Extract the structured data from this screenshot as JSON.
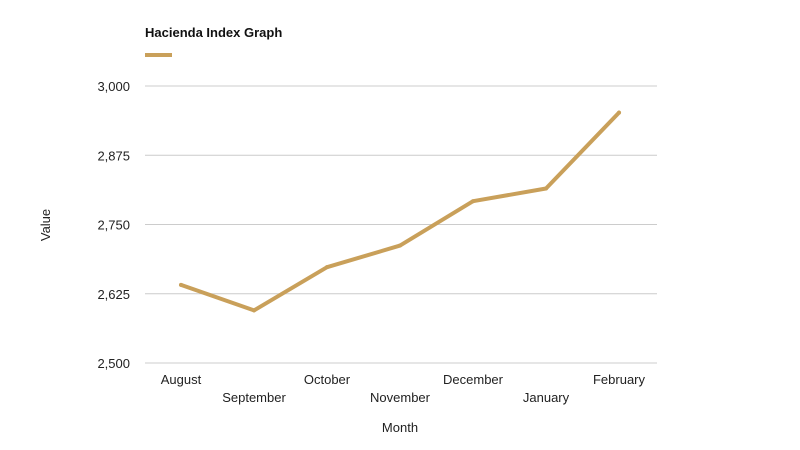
{
  "chart_data": {
    "type": "line",
    "title": "",
    "xlabel": "Month",
    "ylabel": "Value",
    "categories": [
      "August",
      "September",
      "October",
      "November",
      "December",
      "January",
      "February"
    ],
    "series": [
      {
        "name": "Hacienda Index Graph",
        "color": "#c9a05a",
        "values": [
          2641,
          2595,
          2673,
          2712,
          2792,
          2815,
          2952
        ]
      }
    ],
    "ylim": [
      2500,
      3000
    ],
    "yticks": [
      2500,
      2625,
      2750,
      2875,
      3000
    ],
    "ytick_labels": [
      "2,500",
      "2,625",
      "2,750",
      "2,875",
      "3,000"
    ],
    "grid": true,
    "legend": "top-left",
    "colors": {
      "gridline": "#cccccc",
      "text": "#222222"
    }
  }
}
